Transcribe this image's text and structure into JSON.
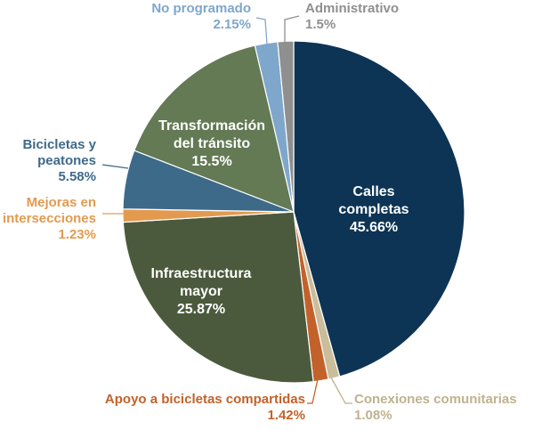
{
  "chart_data": {
    "type": "pie",
    "slices": [
      {
        "lines": [
          "Calles",
          "completas"
        ],
        "value_label": "45.66%",
        "value": 45.66,
        "color": "#0d3454",
        "text_color": "#ffffff",
        "placement": "inside"
      },
      {
        "lines": [
          "Conexiones comunitarias"
        ],
        "value_label": "1.08%",
        "value": 1.08,
        "color": "#c9bd9b",
        "text_color": "#bfb28e",
        "placement": "outside"
      },
      {
        "lines": [
          "Apoyo a bicicletas compartidas"
        ],
        "value_label": "1.42%",
        "value": 1.42,
        "color": "#c2622a",
        "text_color": "#c2622a",
        "placement": "outside"
      },
      {
        "lines": [
          "Infraestructura",
          "mayor"
        ],
        "value_label": "25.87%",
        "value": 25.87,
        "color": "#4b5a3c",
        "text_color": "#ffffff",
        "placement": "inside"
      },
      {
        "lines": [
          "Mejoras en",
          "intersecciones"
        ],
        "value_label": "1.23%",
        "value": 1.23,
        "color": "#e39a4f",
        "text_color": "#e39a4f",
        "placement": "outside"
      },
      {
        "lines": [
          "Bicicletas y",
          "peatones"
        ],
        "value_label": "5.58%",
        "value": 5.58,
        "color": "#3e6a8a",
        "text_color": "#3e6a8a",
        "placement": "outside"
      },
      {
        "lines": [
          "Transformación",
          "del tránsito"
        ],
        "value_label": "15.5%",
        "value": 15.5,
        "color": "#637a55",
        "text_color": "#ffffff",
        "placement": "inside"
      },
      {
        "lines": [
          "No programado"
        ],
        "value_label": "2.15%",
        "value": 2.15,
        "color": "#7ea7cb",
        "text_color": "#7ea7cb",
        "placement": "outside"
      },
      {
        "lines": [
          "Administrativo"
        ],
        "value_label": "1.5%",
        "value": 1.5,
        "color": "#8f8f8f",
        "text_color": "#8f8f8f",
        "placement": "outside"
      }
    ],
    "start": "12 o'clock, clockwise"
  }
}
